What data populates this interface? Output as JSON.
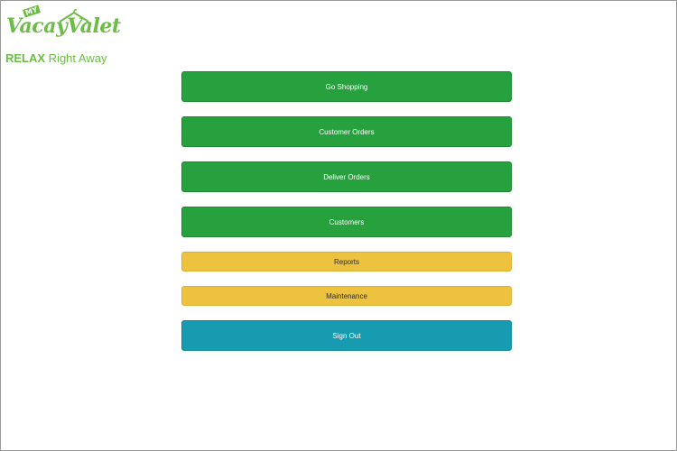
{
  "logo": {
    "my": "MY",
    "name": "VacayValet",
    "tag_bold": "RELAX",
    "tag_rest": " Right Away"
  },
  "menu": {
    "buttons": [
      {
        "label": "Go Shopping",
        "style": "green"
      },
      {
        "label": "Customer Orders",
        "style": "green"
      },
      {
        "label": "Deliver Orders",
        "style": "green"
      },
      {
        "label": "Customers",
        "style": "green"
      },
      {
        "label": "Reports",
        "style": "yellow"
      },
      {
        "label": "Maintenance",
        "style": "yellow"
      },
      {
        "label": "Sign Out",
        "style": "teal"
      }
    ]
  },
  "colors": {
    "green": "#27a03e",
    "yellow": "#ecc23e",
    "teal": "#179bb0",
    "logo_green": "#6cbd45"
  }
}
